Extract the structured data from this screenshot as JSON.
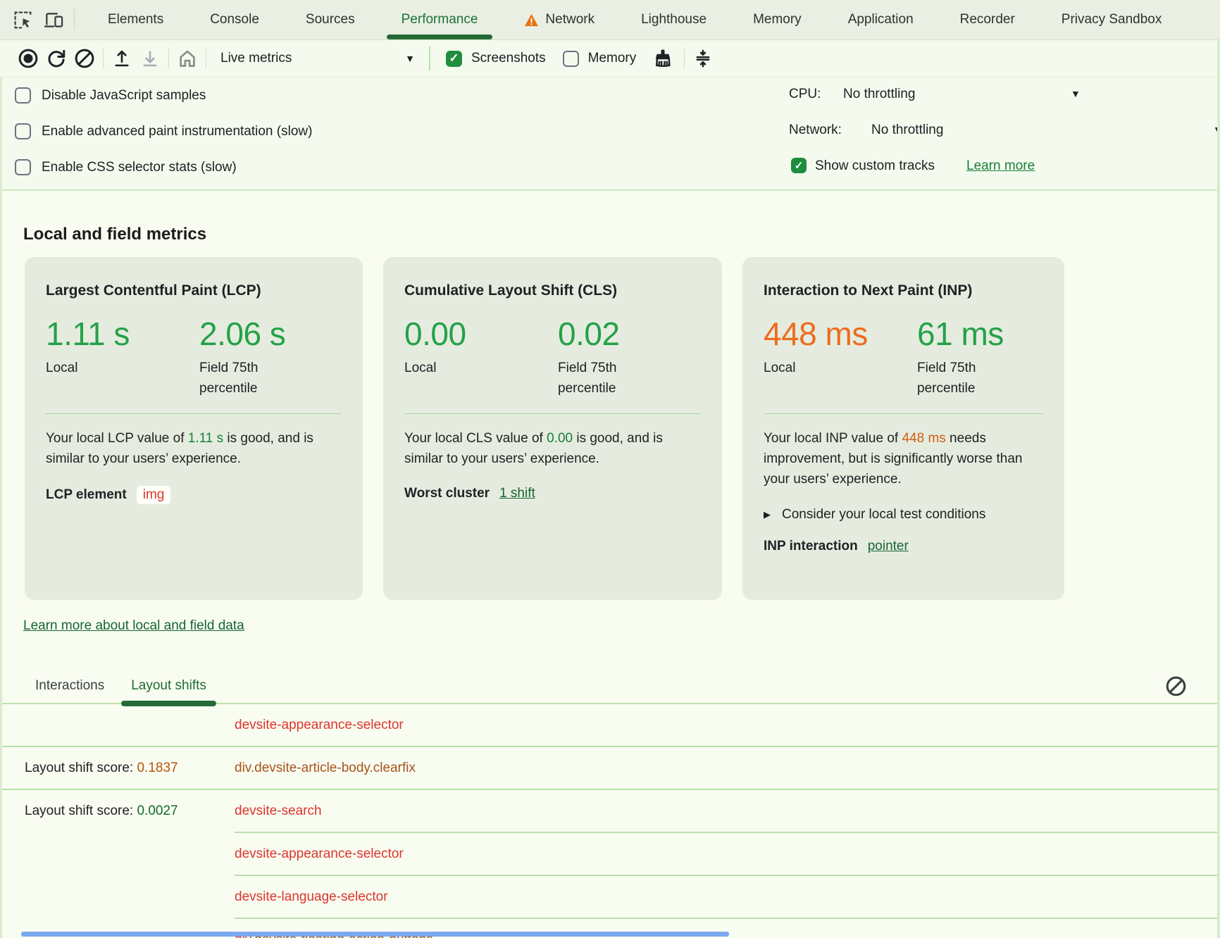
{
  "colors": {
    "accent_green_dark": "#1a7334",
    "metric_green": "#24a148",
    "metric_orange": "#ed6c1e",
    "inline_green": "#188038",
    "inline_orange": "#cf5d13",
    "node_red": "#dc362e",
    "node_brown": "#a6551a",
    "score_orange": "#b45309",
    "score_green": "#0e6b2d",
    "link_green": "#166534",
    "card_bg": "#e5ecdf",
    "bar_blue": "#79a9ee",
    "checkbox_green": "#1e8e3e",
    "warning_orange": "#e8710a"
  },
  "tabbar": {
    "tabs": [
      {
        "label": "Elements"
      },
      {
        "label": "Console"
      },
      {
        "label": "Sources"
      },
      {
        "label": "Performance",
        "active": true
      },
      {
        "label": "Network",
        "warning": true
      },
      {
        "label": "Lighthouse"
      },
      {
        "label": "Memory"
      },
      {
        "label": "Application"
      },
      {
        "label": "Recorder"
      },
      {
        "label": "Privacy Sandbox"
      }
    ]
  },
  "toolbar": {
    "live_metrics_label": "Live metrics",
    "screenshots_label": "Screenshots",
    "screenshots_checked": true,
    "memory_label": "Memory",
    "memory_checked": false
  },
  "settings": {
    "checkboxes": [
      {
        "label": "Disable JavaScript samples",
        "checked": false
      },
      {
        "label": "Enable advanced paint instrumentation (slow)",
        "checked": false
      },
      {
        "label": "Enable CSS selector stats (slow)",
        "checked": false
      }
    ],
    "cpu_label": "CPU:",
    "cpu_value": "No throttling",
    "network_label": "Network:",
    "network_value": "No throttling",
    "custom_tracks_label": "Show custom tracks",
    "custom_tracks_checked": true,
    "learn_more_label": "Learn more"
  },
  "main": {
    "heading": "Local and field metrics",
    "learn_more_link": "Learn more about local and field data"
  },
  "cards": {
    "lcp": {
      "title": "Largest Contentful Paint (LCP)",
      "local_value": "1.11 s",
      "local_label": "Local",
      "field_value": "2.06 s",
      "field_label": "Field 75th percentile",
      "desc_before": "Your local LCP value of ",
      "desc_value": "1.11 s",
      "desc_after": " is good, and is similar to your users’ experience.",
      "footer_label": "LCP element",
      "element_chip": "img"
    },
    "cls": {
      "title": "Cumulative Layout Shift (CLS)",
      "local_value": "0.00",
      "local_label": "Local",
      "field_value": "0.02",
      "field_label": "Field 75th percentile",
      "desc_before": "Your local CLS value of ",
      "desc_value": "0.00",
      "desc_after": " is good, and is similar to your users’ experience.",
      "footer_label": "Worst cluster",
      "link": "1 shift"
    },
    "inp": {
      "title": "Interaction to Next Paint (INP)",
      "local_value": "448 ms",
      "local_label": "Local",
      "field_value": "61 ms",
      "field_label": "Field 75th percentile",
      "desc_before": "Your local INP value of ",
      "desc_value": "448 ms",
      "desc_after": " needs improvement, but is significantly worse than your users’ experience.",
      "disclosure_label": "Consider your local test conditions",
      "footer_label": "INP interaction",
      "link": "pointer"
    }
  },
  "log": {
    "tab_interactions": "Interactions",
    "tab_layout_shifts": "Layout shifts",
    "active_tab": "Layout shifts",
    "score_prefix": "Layout shift score: ",
    "rows": [
      {
        "parts": [
          {
            "t": "devsite-appearance-selector",
            "c": "red"
          }
        ],
        "sep": "full"
      },
      {
        "score": "0.1837",
        "score_class": "orange",
        "parts": [
          {
            "t": "div.devsite-article-body.clearfix",
            "c": "brown"
          }
        ],
        "sep": "full"
      },
      {
        "score": "0.0027",
        "score_class": "green",
        "parts": [
          {
            "t": "devsite-search",
            "c": "red"
          }
        ],
        "sep": "indent"
      },
      {
        "parts": [
          {
            "t": "devsite-appearance-selector",
            "c": "red"
          }
        ],
        "sep": "indent"
      },
      {
        "parts": [
          {
            "t": "devsite-language-selector",
            "c": "red"
          }
        ],
        "sep": "indent"
      },
      {
        "parts": [
          {
            "t": "div",
            "c": "red"
          },
          {
            "t": ".devsite-floating-action-buttons",
            "c": "brown"
          }
        ],
        "sep": null
      }
    ]
  }
}
